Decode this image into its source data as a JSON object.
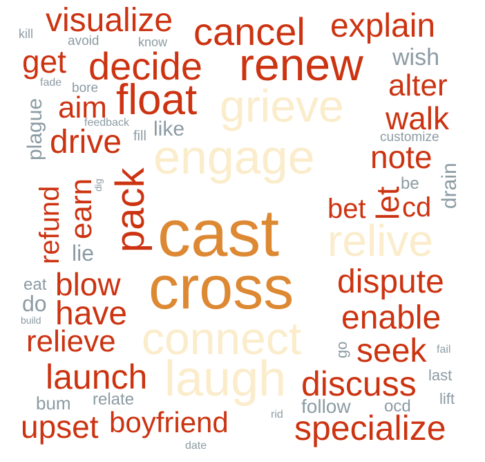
{
  "palette": {
    "red": "#cc3311",
    "orange": "#dd8833",
    "cream": "#fbeccb",
    "gray": "#8c9ba3"
  },
  "words": {
    "cast": "cast",
    "cross": "cross",
    "engage": "engage",
    "connect": "connect",
    "laugh": "laugh",
    "grieve": "grieve",
    "relive": "relive",
    "renew": "renew",
    "cancel": "cancel",
    "visualize": "visualize",
    "explain": "explain",
    "decide": "decide",
    "float": "float",
    "get": "get",
    "aim": "aim",
    "drive": "drive",
    "alter": "alter",
    "walk": "walk",
    "note": "note",
    "wish": "wish",
    "pack": "pack",
    "earn": "earn",
    "refund": "refund",
    "plague": "plague",
    "let": "let",
    "bet": "bet",
    "cd": "cd",
    "drain": "drain",
    "be": "be",
    "blow": "blow",
    "have": "have",
    "relieve": "relieve",
    "launch": "launch",
    "upset": "upset",
    "boyfriend": "boyfriend",
    "dispute": "dispute",
    "enable": "enable",
    "seek": "seek",
    "discuss": "discuss",
    "specialize": "specialize",
    "kill": "kill",
    "avoid": "avoid",
    "know": "know",
    "fade": "fade",
    "bore": "bore",
    "feedback": "feedback",
    "fill": "fill",
    "like": "like",
    "customize": "customize",
    "dig": "dig",
    "lie": "lie",
    "eat": "eat",
    "do": "do",
    "build": "build",
    "go": "go",
    "fail": "fail",
    "last": "last",
    "lift": "lift",
    "ocd": "ocd",
    "follow": "follow",
    "rid": "rid",
    "date": "date",
    "relate": "relate",
    "bum": "bum"
  }
}
